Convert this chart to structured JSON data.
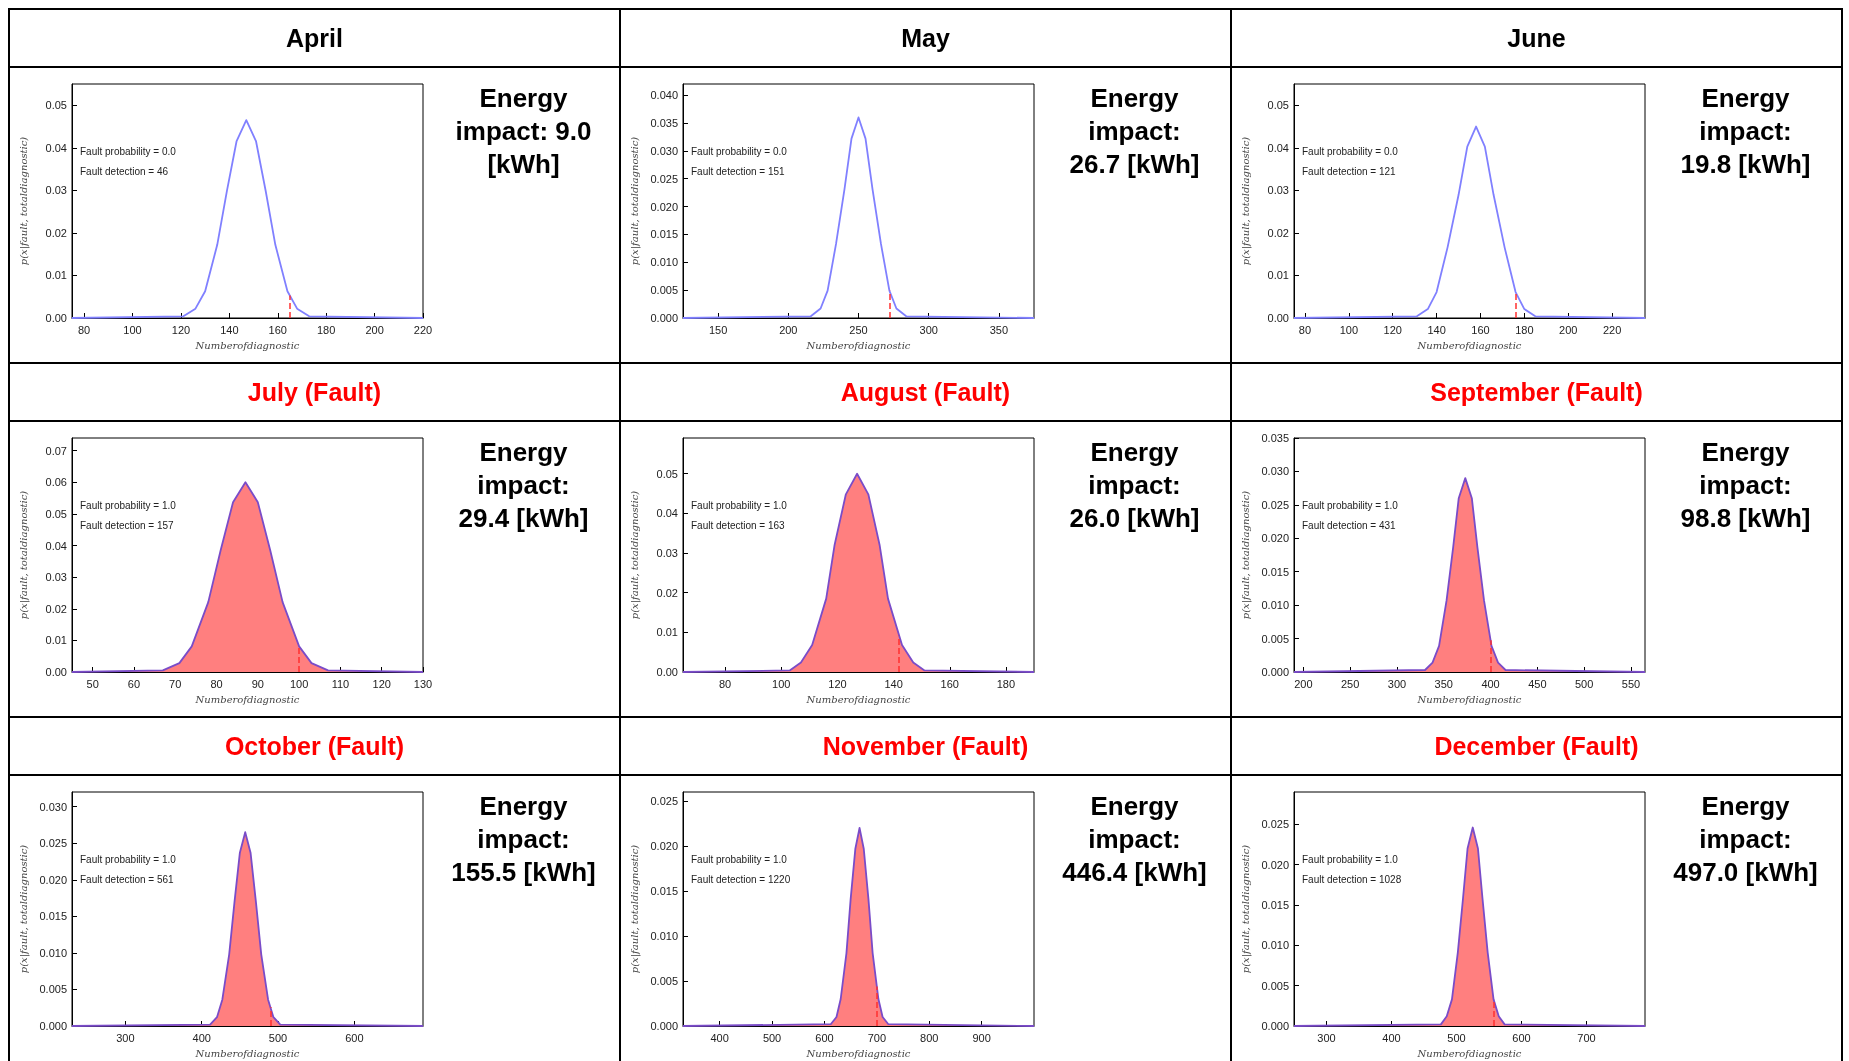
{
  "chart_data": [
    {
      "type": "line",
      "title": "April",
      "xlabel": "Numberofdiagnostic",
      "ylabel": "p(x|fault, totaldiagnostic)",
      "annotations": [
        "Fault probability = 0.0",
        "Fault detection = 46",
        "Energy impact: 9.0 [kWh]"
      ],
      "xlim": [
        75,
        220
      ],
      "xticks": [
        80,
        100,
        120,
        140,
        160,
        180,
        200,
        220
      ],
      "ylim": [
        0,
        0.055
      ],
      "yticks": [
        {
          "value": 0,
          "label": "0.00"
        },
        0.01,
        0.02,
        0.03,
        0.04,
        0.05
      ],
      "ref_lines": [
        {
          "axis": "x",
          "value": 165,
          "color": "#ff3030",
          "line_style": "dashed"
        }
      ],
      "series": [
        {
          "color": "#8080ff",
          "x": [
            75,
            121,
            126,
            130,
            135,
            139,
            143,
            147,
            151,
            155,
            159,
            164,
            168,
            173,
            220
          ],
          "values": [
            0,
            0.0004,
            0.0022,
            0.0063,
            0.0172,
            0.0299,
            0.0416,
            0.0465,
            0.0416,
            0.0299,
            0.0172,
            0.0063,
            0.0022,
            0.0004,
            0
          ]
        }
      ]
    },
    {
      "type": "line",
      "title": "May",
      "xlabel": "Numberofdiagnostic",
      "ylabel": "p(x|fault, totaldiagnostic)",
      "annotations": [
        "Fault probability = 0.0",
        "Fault detection = 151",
        "Energy impact: 26.7 [kWh]"
      ],
      "xlim": [
        125,
        375
      ],
      "xticks": [
        150,
        200,
        250,
        300,
        350
      ],
      "ylim": [
        0,
        0.042
      ],
      "yticks": [
        {
          "value": 0,
          "label": "0.000"
        },
        0.005,
        {
          "value": 0.01,
          "label": "0.010"
        },
        0.015,
        {
          "value": 0.02,
          "label": "0.020"
        },
        0.025,
        {
          "value": 0.03,
          "label": "0.030"
        },
        0.035,
        {
          "value": 0.04,
          "label": "0.040"
        }
      ],
      "ref_lines": [
        {
          "axis": "x",
          "value": 272,
          "color": "#ff3030",
          "line_style": "dashed"
        }
      ],
      "series": [
        {
          "color": "#8080ff",
          "x": [
            125,
            216,
            223,
            228,
            234,
            240,
            245,
            250,
            255,
            260,
            266,
            272,
            277,
            284,
            375
          ],
          "values": [
            0,
            0.0003,
            0.0017,
            0.0049,
            0.0133,
            0.0231,
            0.0322,
            0.036,
            0.0322,
            0.0231,
            0.0133,
            0.0049,
            0.0017,
            0.0003,
            0
          ]
        }
      ]
    },
    {
      "type": "line",
      "title": "June",
      "xlabel": "Numberofdiagnostic",
      "ylabel": "p(x|fault, totaldiagnostic)",
      "annotations": [
        "Fault probability = 0.0",
        "Fault detection = 121",
        "Energy impact: 19.8 [kWh]"
      ],
      "xlim": [
        75,
        235
      ],
      "xticks": [
        80,
        100,
        120,
        140,
        160,
        180,
        200,
        220
      ],
      "ylim": [
        0,
        0.055
      ],
      "yticks": [
        {
          "value": 0,
          "label": "0.00"
        },
        0.01,
        0.02,
        0.03,
        0.04,
        0.05
      ],
      "ref_lines": [
        {
          "axis": "x",
          "value": 176,
          "color": "#ff3030",
          "line_style": "dashed"
        }
      ],
      "series": [
        {
          "color": "#8080ff",
          "x": [
            75,
            131,
            136,
            140,
            145,
            150,
            154,
            158,
            162,
            166,
            171,
            176,
            180,
            185,
            235
          ],
          "values": [
            0,
            0.0004,
            0.0021,
            0.0061,
            0.0166,
            0.0289,
            0.0403,
            0.045,
            0.0403,
            0.0289,
            0.0166,
            0.0061,
            0.0021,
            0.0004,
            0
          ]
        }
      ]
    },
    {
      "type": "area",
      "title": "July (Fault)",
      "xlabel": "Numberofdiagnostic",
      "ylabel": "p(x|fault, totaldiagnostic)",
      "annotations": [
        "Fault probability = 1.0",
        "Fault detection = 157",
        "Energy impact: 29.4 [kWh]"
      ],
      "xlim": [
        45,
        130
      ],
      "xticks": [
        50,
        60,
        70,
        80,
        90,
        100,
        110,
        120,
        130
      ],
      "ylim": [
        0,
        0.074
      ],
      "yticks": [
        {
          "value": 0,
          "label": "0.00"
        },
        0.01,
        0.02,
        0.03,
        0.04,
        0.05,
        0.06,
        0.07
      ],
      "ref_lines": [
        {
          "axis": "x",
          "value": 100,
          "color": "#ff3030",
          "line_style": "dashed"
        }
      ],
      "series": [
        {
          "color": "#ff7f7f",
          "x": [
            45,
            67,
            71,
            74,
            78,
            81,
            84,
            87,
            90,
            93,
            96,
            100,
            103,
            107,
            130
          ],
          "values": [
            0,
            0.0005,
            0.0028,
            0.0081,
            0.0221,
            0.0385,
            0.0537,
            0.06,
            0.0537,
            0.0385,
            0.0221,
            0.0081,
            0.0028,
            0.0005,
            0
          ]
        }
      ]
    },
    {
      "type": "area",
      "title": "August (Fault)",
      "xlabel": "Numberofdiagnostic",
      "ylabel": "p(x|fault, totaldiagnostic)",
      "annotations": [
        "Fault probability = 1.0",
        "Fault detection = 163",
        "Energy impact: 26.0 [kWh]"
      ],
      "xlim": [
        65,
        190
      ],
      "xticks": [
        80,
        100,
        120,
        140,
        160,
        180
      ],
      "ylim": [
        0,
        0.059
      ],
      "yticks": [
        {
          "value": 0,
          "label": "0.00"
        },
        0.01,
        0.02,
        0.03,
        0.04,
        0.05
      ],
      "ref_lines": [
        {
          "axis": "x",
          "value": 142,
          "color": "#ff3030",
          "line_style": "dashed"
        }
      ],
      "series": [
        {
          "color": "#ff7f7f",
          "x": [
            65,
            103,
            107,
            111,
            116,
            119,
            123,
            127,
            131,
            135,
            138,
            143,
            147,
            151,
            190
          ],
          "values": [
            0,
            0.0004,
            0.0024,
            0.0068,
            0.0185,
            0.0321,
            0.0448,
            0.05,
            0.0448,
            0.0321,
            0.0185,
            0.0068,
            0.0024,
            0.0004,
            0
          ]
        }
      ]
    },
    {
      "type": "area",
      "title": "September (Fault)",
      "xlabel": "Numberofdiagnostic",
      "ylabel": "p(x|fault, totaldiagnostic)",
      "annotations": [
        "Fault probability = 1.0",
        "Fault detection = 431",
        "Energy impact: 98.8 [kWh]"
      ],
      "xlim": [
        190,
        565
      ],
      "xticks": [
        200,
        250,
        300,
        350,
        400,
        450,
        500,
        550
      ],
      "ylim": [
        0,
        0.035
      ],
      "yticks": [
        {
          "value": 0,
          "label": "0.000"
        },
        0.005,
        {
          "value": 0.01,
          "label": "0.010"
        },
        0.015,
        {
          "value": 0.02,
          "label": "0.020"
        },
        0.025,
        {
          "value": 0.03,
          "label": "0.030"
        },
        0.035
      ],
      "ref_lines": [
        {
          "axis": "x",
          "value": 400,
          "color": "#ff3030",
          "line_style": "dashed"
        }
      ],
      "series": [
        {
          "color": "#ff7f7f",
          "x": [
            190,
            330,
            338,
            345,
            353,
            360,
            366,
            373,
            380,
            386,
            393,
            401,
            408,
            416,
            565
          ],
          "values": [
            0,
            0.0003,
            0.0014,
            0.0039,
            0.0107,
            0.0186,
            0.026,
            0.029,
            0.026,
            0.0186,
            0.0107,
            0.0039,
            0.0014,
            0.0003,
            0
          ]
        }
      ]
    },
    {
      "type": "area",
      "title": "October (Fault)",
      "xlabel": "Numberofdiagnostic",
      "ylabel": "p(x|fault, totaldiagnostic)",
      "annotations": [
        "Fault probability = 1.0",
        "Fault detection = 561",
        "Energy impact: 155.5 [kWh]"
      ],
      "xlim": [
        230,
        690
      ],
      "xticks": [
        300,
        400,
        500,
        600
      ],
      "ylim": [
        0,
        0.032
      ],
      "yticks": [
        {
          "value": 0,
          "label": "0.000"
        },
        0.005,
        {
          "value": 0.01,
          "label": "0.010"
        },
        0.015,
        {
          "value": 0.02,
          "label": "0.020"
        },
        0.025,
        {
          "value": 0.03,
          "label": "0.030"
        }
      ],
      "ref_lines": [
        {
          "axis": "x",
          "value": 490,
          "color": "#ff3030",
          "line_style": "dashed"
        }
      ],
      "series": [
        {
          "color": "#ff7f7f",
          "x": [
            230,
            411,
            420,
            427,
            436,
            443,
            450,
            457,
            464,
            471,
            478,
            487,
            494,
            503,
            690
          ],
          "values": [
            0,
            0.0002,
            0.0012,
            0.0036,
            0.0098,
            0.017,
            0.0237,
            0.0265,
            0.0237,
            0.017,
            0.0098,
            0.0036,
            0.0012,
            0.0002,
            0
          ]
        }
      ]
    },
    {
      "type": "area",
      "title": "November (Fault)",
      "xlabel": "Numberofdiagnostic",
      "ylabel": "p(x|fault, totaldiagnostic)",
      "annotations": [
        "Fault probability = 1.0",
        "Fault detection = 1220",
        "Energy impact: 446.4 [kWh]"
      ],
      "xlim": [
        330,
        1000
      ],
      "xticks": [
        400,
        500,
        600,
        700,
        800,
        900
      ],
      "ylim": [
        0,
        0.026
      ],
      "yticks": [
        {
          "value": 0,
          "label": "0.000"
        },
        0.005,
        {
          "value": 0.01,
          "label": "0.010"
        },
        0.015,
        {
          "value": 0.02,
          "label": "0.020"
        },
        0.025
      ],
      "ref_lines": [
        {
          "axis": "x",
          "value": 700,
          "color": "#ff3030",
          "line_style": "dashed"
        }
      ],
      "series": [
        {
          "color": "#ff7f7f",
          "x": [
            330,
            612,
            623,
            631,
            642,
            650,
            659,
            667,
            675,
            684,
            692,
            703,
            711,
            722,
            1000
          ],
          "values": [
            0,
            0.0002,
            0.001,
            0.003,
            0.0081,
            0.0141,
            0.0197,
            0.022,
            0.0197,
            0.0141,
            0.0081,
            0.003,
            0.001,
            0.0002,
            0
          ]
        }
      ]
    },
    {
      "type": "area",
      "title": "December (Fault)",
      "xlabel": "Numberofdiagnostic",
      "ylabel": "p(x|fault, totaldiagnostic)",
      "annotations": [
        "Fault probability = 1.0",
        "Fault detection = 1028",
        "Energy impact: 497.0 [kWh]"
      ],
      "xlim": [
        250,
        790
      ],
      "xticks": [
        300,
        400,
        500,
        600,
        700
      ],
      "ylim": [
        0,
        0.029
      ],
      "yticks": [
        {
          "value": 0,
          "label": "0.000"
        },
        0.005,
        {
          "value": 0.01,
          "label": "0.010"
        },
        0.015,
        {
          "value": 0.02,
          "label": "0.020"
        },
        0.025
      ],
      "ref_lines": [
        {
          "axis": "x",
          "value": 558,
          "color": "#ff3030",
          "line_style": "dashed"
        }
      ],
      "series": [
        {
          "color": "#ff7f7f",
          "x": [
            250,
            476,
            485,
            493,
            502,
            510,
            517,
            525,
            533,
            540,
            548,
            557,
            565,
            574,
            790
          ],
          "values": [
            0,
            0.0002,
            0.0012,
            0.0033,
            0.0091,
            0.0158,
            0.022,
            0.0246,
            0.022,
            0.0158,
            0.0091,
            0.0033,
            0.0012,
            0.0002,
            0
          ]
        }
      ]
    }
  ]
}
